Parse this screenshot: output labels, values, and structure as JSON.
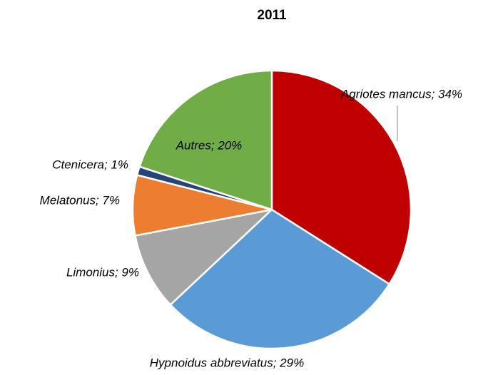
{
  "chart_data": {
    "type": "pie",
    "title": "2011",
    "values": [
      34,
      29,
      9,
      7,
      1,
      20
    ],
    "value_labels": [
      "Agriotes mancus; 34%",
      "Hypnoidus abbreviatus; 29%",
      "Limonius; 9%",
      "Melatonus; 7%",
      "Ctenicera; 1%",
      "Autres; 20%"
    ],
    "colors": [
      "#c00000",
      "#5b9bd5",
      "#a5a5a5",
      "#ed7d31",
      "#264478",
      "#70ad47"
    ]
  }
}
